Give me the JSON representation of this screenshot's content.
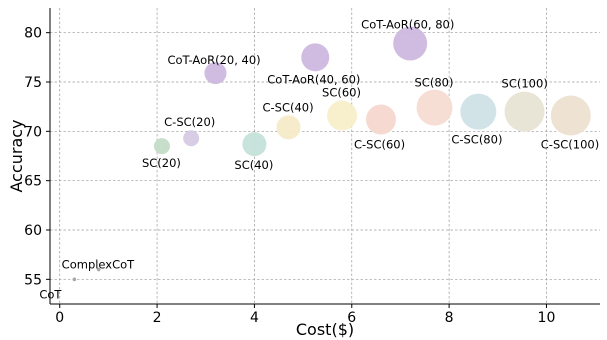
{
  "chart_data": {
    "type": "scatter",
    "xlabel": "Cost($)",
    "ylabel": "Accuracy",
    "xlim": [
      -0.2,
      11.1
    ],
    "ylim": [
      52.5,
      82.5
    ],
    "xticks": [
      0,
      2,
      4,
      6,
      8,
      10
    ],
    "yticks": [
      55,
      60,
      65,
      70,
      75,
      80
    ],
    "grid": true,
    "points": [
      {
        "label": "CoT",
        "x": 0.3,
        "y": 55.0,
        "size": 1,
        "color": "#a8a8a8"
      },
      {
        "label": "ComplexCoT",
        "x": 0.8,
        "y": 56.0,
        "size": 1,
        "color": "#a8a8a8"
      },
      {
        "label": "SC(20)",
        "x": 2.1,
        "y": 68.5,
        "size": 8,
        "color": "#c3dcc7"
      },
      {
        "label": "C-SC(20)",
        "x": 2.7,
        "y": 69.3,
        "size": 8,
        "color": "#d7c9e4"
      },
      {
        "label": "SC(40)",
        "x": 4.0,
        "y": 68.7,
        "size": 12,
        "color": "#c5e0da"
      },
      {
        "label": "C-SC(40)",
        "x": 4.7,
        "y": 70.4,
        "size": 12,
        "color": "#f5ebc8"
      },
      {
        "label": "SC(60)",
        "x": 5.8,
        "y": 71.6,
        "size": 15,
        "color": "#f8efc9"
      },
      {
        "label": "C-SC(60)",
        "x": 6.6,
        "y": 71.2,
        "size": 15,
        "color": "#f6d8cf"
      },
      {
        "label": "SC(80)",
        "x": 7.7,
        "y": 72.4,
        "size": 18,
        "color": "#f6dcd3"
      },
      {
        "label": "C-SC(80)",
        "x": 8.6,
        "y": 72.0,
        "size": 18,
        "color": "#cfe2e6"
      },
      {
        "label": "SC(100)",
        "x": 9.55,
        "y": 72.0,
        "size": 20,
        "color": "#e8e4d4"
      },
      {
        "label": "C-SC(100)",
        "x": 10.5,
        "y": 71.6,
        "size": 20,
        "color": "#ede0d1"
      },
      {
        "label": "CoT-AoR(20, 40)",
        "x": 3.2,
        "y": 75.9,
        "size": 11,
        "color": "#cdb8de"
      },
      {
        "label": "CoT-AoR(40, 60)",
        "x": 5.25,
        "y": 77.5,
        "size": 14,
        "color": "#cdb8de"
      },
      {
        "label": "CoT-AoR(60, 80)",
        "x": 7.2,
        "y": 78.9,
        "size": 17,
        "color": "#cdb8de"
      }
    ]
  }
}
